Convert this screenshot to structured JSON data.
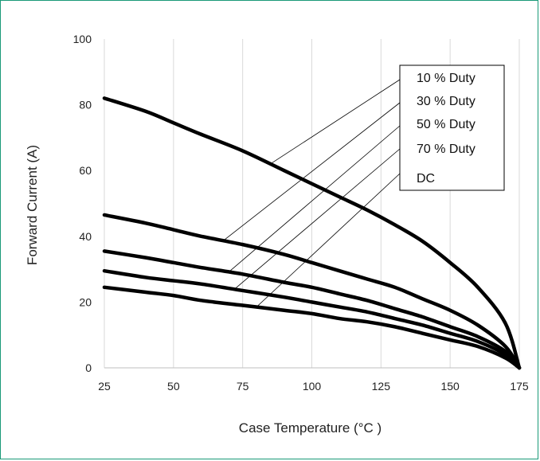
{
  "chart_data": {
    "type": "line",
    "title": "",
    "xlabel": "Case Temperature (°C )",
    "ylabel": "Forward Current (A)",
    "xlim": [
      25,
      175
    ],
    "ylim": [
      0,
      100
    ],
    "x_ticks": [
      25,
      50,
      75,
      100,
      125,
      150,
      175
    ],
    "y_ticks": [
      0,
      20,
      40,
      60,
      80,
      100
    ],
    "grid": "vertical gridlines",
    "legend_placement": "top-right",
    "series": [
      {
        "name": "10 % Duty",
        "x": [
          25,
          40,
          50,
          60,
          75,
          90,
          100,
          110,
          120,
          130,
          140,
          150,
          160,
          170,
          175
        ],
        "values": [
          82,
          78,
          74.5,
          71,
          66,
          60,
          56,
          52,
          48,
          43.5,
          38.5,
          32,
          24.5,
          13.5,
          0
        ]
      },
      {
        "name": "30 % Duty",
        "x": [
          25,
          40,
          50,
          60,
          75,
          90,
          100,
          110,
          120,
          130,
          140,
          150,
          160,
          170,
          175
        ],
        "values": [
          46.5,
          44,
          42,
          40,
          37.5,
          34.5,
          32,
          29.5,
          27,
          24.5,
          21,
          17.5,
          13,
          6.5,
          0
        ]
      },
      {
        "name": "50 % Duty",
        "x": [
          25,
          40,
          50,
          60,
          75,
          90,
          100,
          110,
          120,
          130,
          140,
          150,
          160,
          170,
          175
        ],
        "values": [
          35.5,
          33.5,
          32,
          30.5,
          28.5,
          26,
          24.5,
          22.5,
          20.5,
          18,
          15.5,
          12.5,
          9.5,
          5,
          0
        ]
      },
      {
        "name": "70 % Duty",
        "x": [
          25,
          40,
          50,
          60,
          75,
          90,
          100,
          110,
          120,
          130,
          140,
          150,
          160,
          170,
          175
        ],
        "values": [
          29.5,
          27.5,
          26.5,
          25.5,
          23.5,
          21.5,
          20,
          18.5,
          17,
          15,
          13,
          10.5,
          8,
          4,
          0
        ]
      },
      {
        "name": "DC",
        "x": [
          25,
          40,
          50,
          60,
          75,
          90,
          100,
          110,
          120,
          130,
          140,
          150,
          160,
          170,
          175
        ],
        "values": [
          24.5,
          23,
          22,
          20.5,
          19,
          17.5,
          16.5,
          15,
          14,
          12.5,
          10.5,
          8.5,
          6.5,
          3,
          0
        ]
      }
    ],
    "callouts": [
      {
        "series": "10 % Duty",
        "x": 85
      },
      {
        "series": "30 % Duty",
        "x": 68
      },
      {
        "series": "50 % Duty",
        "x": 70
      },
      {
        "series": "70 % Duty",
        "x": 72
      },
      {
        "series": "DC",
        "x": 80
      }
    ],
    "colors": {
      "lines": "#000000",
      "frame": "#1a9a78",
      "grid": "#d9d9d9"
    }
  }
}
